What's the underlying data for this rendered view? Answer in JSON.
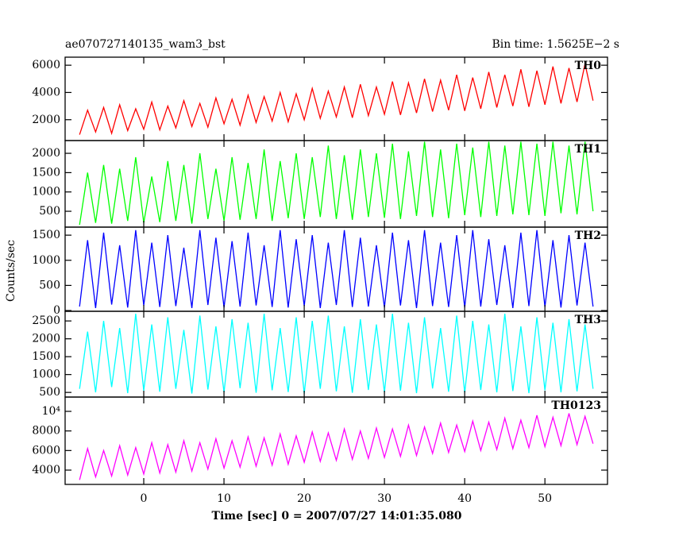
{
  "chart_data": {
    "type": "line",
    "title": "ae070727140135_wam3_bst",
    "subtitle": "Bin time: 1.5625E−2 s",
    "xlabel": "Time [sec] 0 = 2007/07/27 14:01:35.080",
    "ylabel": "Counts/sec",
    "xlim": [
      -9.8,
      57.8
    ],
    "xticks": [
      0,
      10,
      20,
      30,
      40,
      50
    ],
    "x": [
      -8,
      -7,
      -6,
      -5,
      -4,
      -3,
      -2,
      -1,
      0,
      1,
      2,
      3,
      4,
      5,
      6,
      7,
      8,
      9,
      10,
      11,
      12,
      13,
      14,
      15,
      16,
      17,
      18,
      19,
      20,
      21,
      22,
      23,
      24,
      25,
      26,
      27,
      28,
      29,
      30,
      31,
      32,
      33,
      34,
      35,
      36,
      37,
      38,
      39,
      40,
      41,
      42,
      43,
      44,
      45,
      46,
      47,
      48,
      49,
      50,
      51,
      52,
      53,
      54,
      55,
      56
    ],
    "panels": [
      {
        "name": "TH0",
        "color": "#ff0000",
        "ylim": [
          470,
          6590
        ],
        "yticks": [
          2000,
          4000,
          6000
        ],
        "values": [
          900,
          2700,
          1100,
          2900,
          1000,
          3100,
          1200,
          2800,
          1300,
          3300,
          1250,
          3000,
          1400,
          3400,
          1500,
          3200,
          1450,
          3600,
          1700,
          3500,
          1600,
          3800,
          1800,
          3700,
          1900,
          4000,
          1850,
          3900,
          2000,
          4300,
          2100,
          4100,
          2200,
          4400,
          2150,
          4600,
          2300,
          4400,
          2400,
          4800,
          2350,
          4700,
          2500,
          5000,
          2600,
          4900,
          2700,
          5300,
          2650,
          5100,
          2800,
          5500,
          2900,
          5300,
          3000,
          5700,
          2950,
          5600,
          3100,
          5900,
          3200,
          5800,
          3300,
          6100,
          3400
        ]
      },
      {
        "name": "TH1",
        "color": "#00ff00",
        "ylim": [
          90,
          2330
        ],
        "yticks": [
          500,
          1000,
          1500,
          2000
        ],
        "values": [
          150,
          1500,
          200,
          1700,
          180,
          1600,
          250,
          1900,
          200,
          1400,
          220,
          1800,
          250,
          1700,
          180,
          2000,
          300,
          1600,
          250,
          1900,
          280,
          1750,
          300,
          2100,
          250,
          1800,
          320,
          2000,
          300,
          1900,
          350,
          2200,
          300,
          1950,
          280,
          2100,
          350,
          2000,
          330,
          2250,
          300,
          2050,
          380,
          2300,
          350,
          2100,
          320,
          2250,
          400,
          2150,
          350,
          2300,
          380,
          2200,
          420,
          2300,
          400,
          2250,
          380,
          2300,
          450,
          2200,
          420,
          2300,
          500
        ]
      },
      {
        "name": "TH2",
        "color": "#0000ff",
        "ylim": [
          -15,
          1660
        ],
        "yticks": [
          0,
          500,
          1000,
          1500
        ],
        "values": [
          80,
          1400,
          50,
          1550,
          120,
          1300,
          60,
          1600,
          100,
          1350,
          70,
          1500,
          90,
          1250,
          50,
          1600,
          110,
          1450,
          60,
          1380,
          80,
          1550,
          100,
          1300,
          70,
          1600,
          60,
          1420,
          90,
          1500,
          50,
          1350,
          110,
          1600,
          70,
          1450,
          80,
          1300,
          60,
          1550,
          100,
          1400,
          50,
          1600,
          90,
          1350,
          70,
          1500,
          60,
          1600,
          80,
          1420,
          110,
          1300,
          50,
          1550,
          90,
          1600,
          70,
          1400,
          60,
          1500,
          100,
          1350,
          80
        ]
      },
      {
        "name": "TH3",
        "color": "#00ffff",
        "ylim": [
          370,
          2770
        ],
        "yticks": [
          500,
          1000,
          1500,
          2000,
          2500
        ],
        "values": [
          600,
          2200,
          500,
          2500,
          650,
          2300,
          480,
          2700,
          550,
          2400,
          520,
          2600,
          600,
          2250,
          470,
          2650,
          580,
          2350,
          500,
          2550,
          620,
          2450,
          490,
          2700,
          560,
          2300,
          510,
          2600,
          470,
          2500,
          600,
          2650,
          530,
          2350,
          490,
          2550,
          570,
          2400,
          500,
          2700,
          550,
          2450,
          480,
          2600,
          610,
          2300,
          520,
          2650,
          490,
          2500,
          570,
          2400,
          500,
          2700,
          540,
          2350,
          480,
          2600,
          560,
          2450,
          500,
          2550,
          530,
          2400,
          600
        ]
      },
      {
        "name": "TH0123",
        "color": "#ff00ff",
        "ylim": [
          2540,
          11460
        ],
        "yticks": [
          4000,
          6000,
          8000,
          {
            "value": 10000,
            "label": "10⁴"
          }
        ],
        "values": [
          3000,
          6200,
          3300,
          6000,
          3400,
          6500,
          3500,
          6300,
          3600,
          6800,
          3700,
          6600,
          3800,
          7000,
          3900,
          6800,
          4100,
          7200,
          4200,
          7000,
          4300,
          7400,
          4400,
          7300,
          4500,
          7700,
          4600,
          7500,
          4800,
          7900,
          4900,
          7800,
          5000,
          8200,
          5100,
          8000,
          5200,
          8300,
          5300,
          8200,
          5400,
          8600,
          5500,
          8400,
          5700,
          8800,
          5800,
          8600,
          5900,
          9000,
          6000,
          8900,
          6100,
          9300,
          6200,
          9100,
          6300,
          9600,
          6400,
          9400,
          6500,
          9800,
          6600,
          9500,
          6700
        ]
      }
    ]
  }
}
